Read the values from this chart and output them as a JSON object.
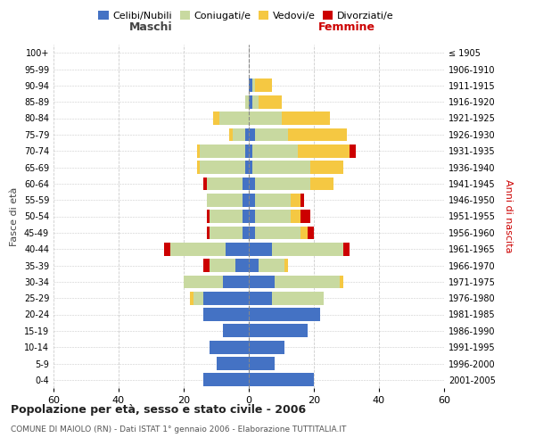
{
  "age_groups": [
    "0-4",
    "5-9",
    "10-14",
    "15-19",
    "20-24",
    "25-29",
    "30-34",
    "35-39",
    "40-44",
    "45-49",
    "50-54",
    "55-59",
    "60-64",
    "65-69",
    "70-74",
    "75-79",
    "80-84",
    "85-89",
    "90-94",
    "95-99",
    "100+"
  ],
  "birth_years": [
    "2001-2005",
    "1996-2000",
    "1991-1995",
    "1986-1990",
    "1981-1985",
    "1976-1980",
    "1971-1975",
    "1966-1970",
    "1961-1965",
    "1956-1960",
    "1951-1955",
    "1946-1950",
    "1941-1945",
    "1936-1940",
    "1931-1935",
    "1926-1930",
    "1921-1925",
    "1916-1920",
    "1911-1915",
    "1906-1910",
    "≤ 1905"
  ],
  "males": {
    "celibi": [
      14,
      10,
      12,
      8,
      14,
      14,
      8,
      4,
      7,
      2,
      2,
      2,
      2,
      1,
      1,
      1,
      0,
      0,
      0,
      0,
      0
    ],
    "coniugati": [
      0,
      0,
      0,
      0,
      0,
      3,
      12,
      8,
      17,
      10,
      10,
      11,
      11,
      14,
      14,
      4,
      9,
      1,
      0,
      0,
      0
    ],
    "vedovi": [
      0,
      0,
      0,
      0,
      0,
      1,
      0,
      0,
      0,
      0,
      0,
      0,
      0,
      1,
      1,
      1,
      2,
      0,
      0,
      0,
      0
    ],
    "divorziati": [
      0,
      0,
      0,
      0,
      0,
      0,
      0,
      2,
      2,
      1,
      1,
      0,
      1,
      0,
      0,
      0,
      0,
      0,
      0,
      0,
      0
    ]
  },
  "females": {
    "nubili": [
      20,
      8,
      11,
      18,
      22,
      7,
      8,
      3,
      7,
      2,
      2,
      2,
      2,
      1,
      1,
      2,
      0,
      1,
      1,
      0,
      0
    ],
    "coniugate": [
      0,
      0,
      0,
      0,
      0,
      16,
      20,
      8,
      22,
      14,
      11,
      11,
      17,
      18,
      14,
      10,
      10,
      2,
      1,
      0,
      0
    ],
    "vedove": [
      0,
      0,
      0,
      0,
      0,
      0,
      1,
      1,
      0,
      2,
      3,
      3,
      7,
      10,
      16,
      18,
      15,
      7,
      5,
      0,
      0
    ],
    "divorziate": [
      0,
      0,
      0,
      0,
      0,
      0,
      0,
      0,
      2,
      2,
      3,
      1,
      0,
      0,
      2,
      0,
      0,
      0,
      0,
      0,
      0
    ]
  },
  "colors": {
    "celibi_nubili": "#4472C4",
    "coniugati": "#c8d9a0",
    "vedovi": "#f5c842",
    "divorziati": "#cc0000"
  },
  "xlim": 60,
  "title": "Popolazione per età, sesso e stato civile - 2006",
  "subtitle": "COMUNE DI MAIOLO (RN) - Dati ISTAT 1° gennaio 2006 - Elaborazione TUTTITALIA.IT",
  "xlabel_left": "Maschi",
  "xlabel_right": "Femmine",
  "ylabel_left": "Fasce di età",
  "ylabel_right": "Anni di nascita",
  "legend_labels": [
    "Celibi/Nubili",
    "Coniugati/e",
    "Vedovi/e",
    "Divorziati/e"
  ],
  "background_color": "#ffffff",
  "grid_color": "#cccccc"
}
